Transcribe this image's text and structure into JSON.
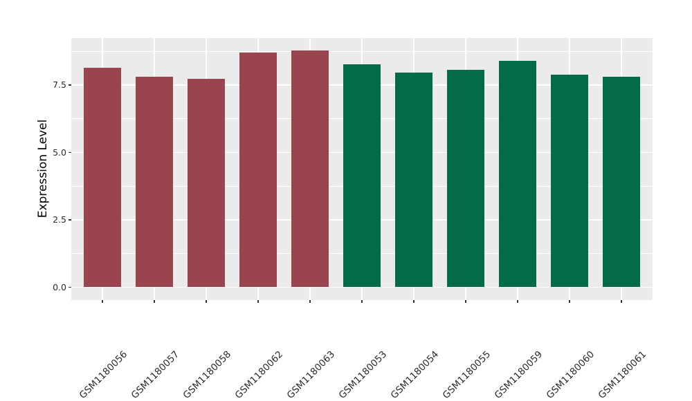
{
  "figure": {
    "background_color": "#ffffff",
    "panel_background_color": "#ebebeb",
    "grid_color": "#ffffff",
    "tick_color": "#333333",
    "axis_text_color": "#2b2b2b",
    "axis_title_color": "#000000"
  },
  "chart_data": {
    "type": "bar",
    "title": "",
    "xlabel": "",
    "ylabel": "Expression Level",
    "categories": [
      "GSM1180056",
      "GSM1180057",
      "GSM1180058",
      "GSM1180062",
      "GSM1180063",
      "GSM1180053",
      "GSM1180054",
      "GSM1180055",
      "GSM1180059",
      "GSM1180060",
      "GSM1180061"
    ],
    "values": [
      8.15,
      7.81,
      7.72,
      8.7,
      8.77,
      8.27,
      7.95,
      8.06,
      8.4,
      7.88,
      7.81
    ],
    "bar_colors": [
      "#9a4450",
      "#9a4450",
      "#9a4450",
      "#9a4450",
      "#9a4450",
      "#016b4a",
      "#016b4a",
      "#016b4a",
      "#016b4a",
      "#016b4a",
      "#016b4a"
    ],
    "group_colors": {
      "maroon": "#9a4450",
      "green": "#016b4a"
    },
    "yticks": [
      0.0,
      2.5,
      5.0,
      7.5
    ],
    "ytick_labels": [
      "0.0",
      "2.5",
      "5.0",
      "7.5"
    ],
    "minor_yticks": [
      1.25,
      3.75,
      6.25,
      8.75
    ],
    "ylim": [
      -0.47,
      9.26
    ],
    "bar_width_ratio": 0.72,
    "x_label_rotation_deg": 45,
    "grid": true,
    "legend": false
  }
}
